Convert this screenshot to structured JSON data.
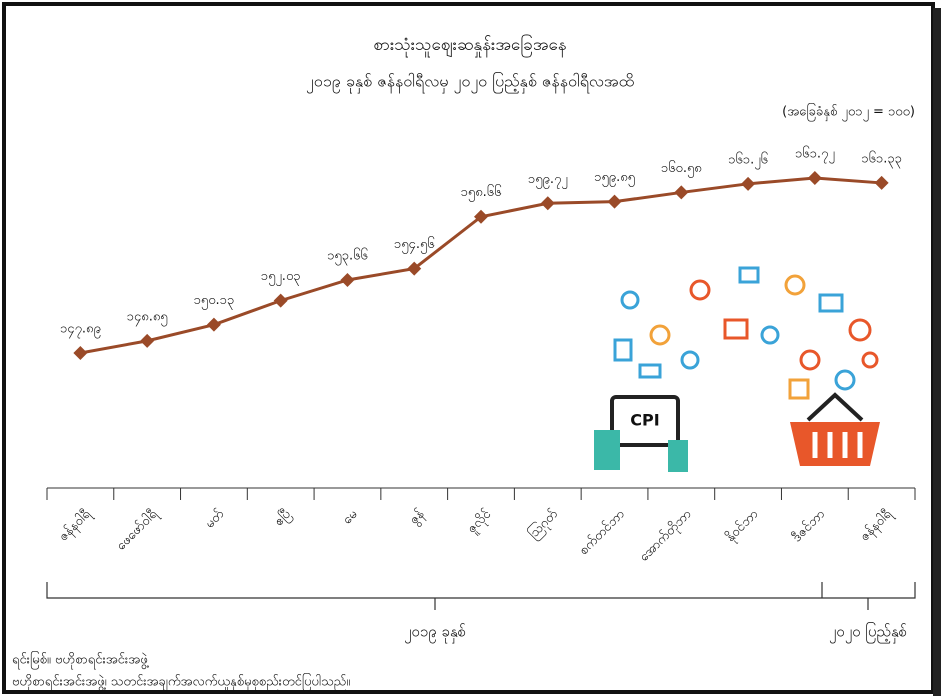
{
  "chart_data": {
    "type": "line",
    "title": "စားသုံးသူဈေးဆနှုန်းအခြေအနေ",
    "subtitle": "၂၀၁၉ ခုနှစ် ဇန်နဝါရီလမှ ၂၀၂၀ ပြည့်နှစ် ဇန်နဝါရီလအထိ",
    "base_note": "(အခြေခံနှစ် ၂၀၁၂ = ၁၀၀)",
    "categories": [
      "ဇန်နဝါရီ",
      "ဖေဖော်ဝါရီ",
      "မတ်",
      "ဧပြီ",
      "မေ",
      "ဇွန်",
      "ဇူလိုင်",
      "ဩဂုတ်",
      "စက်တင်ဘာ",
      "အောက်တိုဘာ",
      "နိုဝင်ဘာ",
      "ဒီဇင်ဘာ",
      "ဇန်နဝါရီ"
    ],
    "values": [
      147.89,
      148.85,
      150.13,
      152.03,
      153.66,
      154.56,
      158.66,
      159.72,
      159.85,
      160.58,
      161.26,
      161.72,
      161.33
    ],
    "value_labels": [
      "၁၄၇.၈၉",
      "၁၄၈.၈၅",
      "၁၅၀.၁၃",
      "၁၅၂.၀၃",
      "၁၅၃.၆၆",
      "၁၅၄.၅၆",
      "၁၅၈.၆၆",
      "၁၅၉.၇၂",
      "၁၅၉.၈၅",
      "၁၆၀.၅၈",
      "၁၆၁.၂၆",
      "၁၆၁.၇၂",
      "၁၆၁.၃၃"
    ],
    "color": "#9a4a28",
    "group_labels": [
      "၂၀၁၉ ခုနှစ်",
      "၂၀၂၀ ပြည့်နှစ်"
    ],
    "illustration_text": "CPI",
    "source": [
      "ရင်းမြစ်။ ဗဟိုစာရင်းအင်းအဖွဲ့",
      "ဗဟိုစာရင်းအင်းအဖွဲ့၊ သတင်းအချက်အလက်ယူနှစ်မှစုစည်းတင်ပြပါသည်။"
    ]
  }
}
